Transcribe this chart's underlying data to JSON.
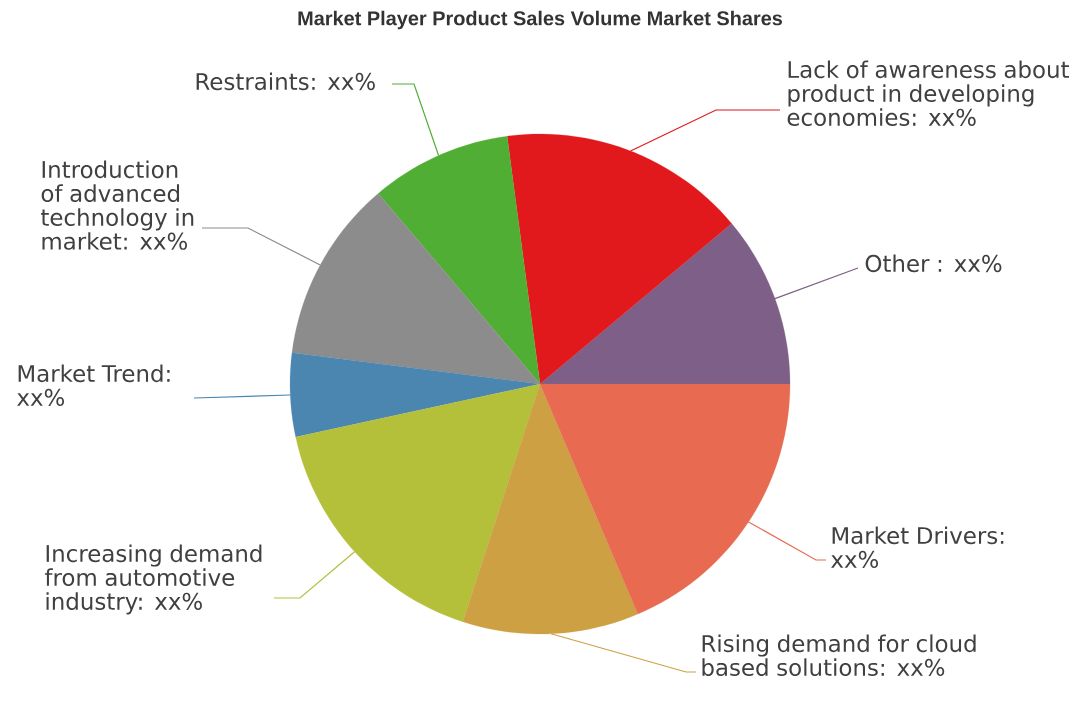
{
  "chart_data": {
    "type": "pie",
    "title": "Market Player Product Sales Volume Market Shares",
    "categories": [
      "Other : xx%",
      "Lack of awareness about product in developing economies: xx%",
      "Restraints: xx%",
      "Introduction of advanced technology in market: xx%",
      "Market Trend: xx%",
      "Increasing demand from automotive industry: xx%",
      "Rising demand for cloud based solutions: xx%",
      "Market Drivers: xx%"
    ],
    "values": [
      11.1,
      16.0,
      9.1,
      11.8,
      5.4,
      16.6,
      11.4,
      18.6
    ],
    "colors": [
      "#7e5f87",
      "#e2191c",
      "#4fae33",
      "#8c8c8c",
      "#4a86b0",
      "#b4bf3a",
      "#cda043",
      "#e76a51"
    ]
  }
}
